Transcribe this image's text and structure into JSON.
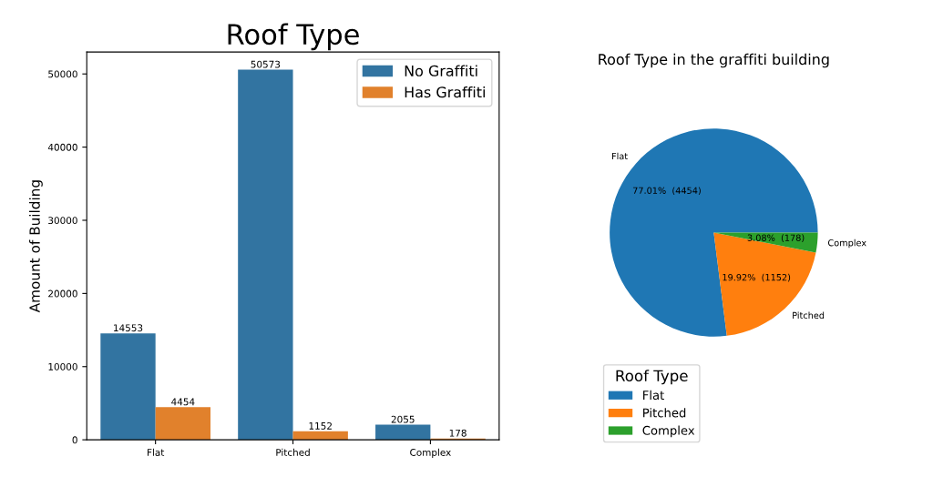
{
  "chart_data": [
    {
      "type": "bar",
      "title": "Roof Type",
      "ylabel": "Amount of Building",
      "categories": [
        "Flat",
        "Pitched",
        "Complex"
      ],
      "series": [
        {
          "name": "No Graffiti",
          "color": "#3274a1",
          "values": [
            14553,
            50573,
            2055
          ]
        },
        {
          "name": "Has Graffiti",
          "color": "#e1812c",
          "values": [
            4454,
            1152,
            178
          ]
        }
      ],
      "ylim": [
        0,
        53000
      ],
      "yticks": [
        0,
        10000,
        20000,
        30000,
        40000,
        50000
      ],
      "data_labels": true,
      "legend": "top right",
      "grid": false
    },
    {
      "type": "pie",
      "title": "Roof Type in the graffiti building",
      "legend_title": "Roof Type",
      "categories": [
        "Flat",
        "Pitched",
        "Complex"
      ],
      "values": [
        4454,
        1152,
        178
      ],
      "colors": [
        "#1f77b4",
        "#ff7f0e",
        "#2ca02c"
      ],
      "value_labels": [
        "77.01%  (4454)",
        "19.92%  (1152)",
        "3.08%  (178)"
      ],
      "legend": "bottom left"
    }
  ]
}
